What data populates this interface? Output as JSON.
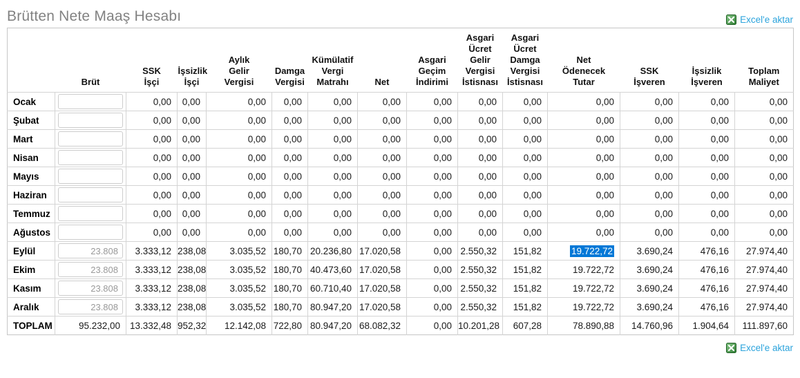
{
  "page": {
    "title": "Brütten Nete Maaş Hesabı"
  },
  "export_link": {
    "label": "Excel'e aktar"
  },
  "colors": {
    "title": "#828282",
    "link": "#2ba3dc",
    "selection_bg": "#0078d7",
    "selection_text": "#ffffff",
    "table_border": "#c6c6c6",
    "cell_border": "#d4d4d4",
    "excel_icon_green": "#2e7d32"
  },
  "table": {
    "corner_label": "",
    "columns": [
      {
        "label": "Brüt",
        "lines": [
          "Brüt"
        ]
      },
      {
        "label": "SSK İşçi",
        "lines": [
          "SSK",
          "İşçi"
        ]
      },
      {
        "label": "İşsizlik İşçi",
        "lines": [
          "İşsizlik",
          "İşçi"
        ]
      },
      {
        "label": "Aylık Gelir Vergisi",
        "lines": [
          "Aylık",
          "Gelir",
          "Vergisi"
        ]
      },
      {
        "label": "Damga Vergisi",
        "lines": [
          "Damga",
          "Vergisi"
        ]
      },
      {
        "label": "Kümülatif Vergi Matrahı",
        "lines": [
          "Kümülatif",
          "Vergi",
          "Matrahı"
        ]
      },
      {
        "label": "Net",
        "lines": [
          "Net"
        ]
      },
      {
        "label": "Asgari Geçim İndirimi",
        "lines": [
          "Asgari",
          "Geçim",
          "İndirimi"
        ]
      },
      {
        "label": "Asgari Ücret Gelir Vergisi İstisnası",
        "lines": [
          "Asgari",
          "Ücret",
          "Gelir",
          "Vergisi",
          "İstisnası"
        ]
      },
      {
        "label": "Asgari Ücret Damga Vergisi İstisnası",
        "lines": [
          "Asgari",
          "Ücret",
          "Damga",
          "Vergisi",
          "İstisnası"
        ]
      },
      {
        "label": "Net Ödenecek Tutar",
        "lines": [
          "Net",
          "Ödenecek",
          "Tutar"
        ]
      },
      {
        "label": "SSK İşveren",
        "lines": [
          "SSK",
          "İşveren"
        ]
      },
      {
        "label": "İşsizlik İşveren",
        "lines": [
          "İşsizlik",
          "İşveren"
        ]
      },
      {
        "label": "Toplam Maliyet",
        "lines": [
          "Toplam",
          "Maliyet"
        ]
      }
    ],
    "rows": [
      {
        "month": "Ocak",
        "brut_input": "",
        "values": [
          "0,00",
          "0,00",
          "0,00",
          "0,00",
          "0,00",
          "0,00",
          "0,00",
          "0,00",
          "0,00",
          "0,00",
          "0,00",
          "0,00",
          "0,00"
        ]
      },
      {
        "month": "Şubat",
        "brut_input": "",
        "values": [
          "0,00",
          "0,00",
          "0,00",
          "0,00",
          "0,00",
          "0,00",
          "0,00",
          "0,00",
          "0,00",
          "0,00",
          "0,00",
          "0,00",
          "0,00"
        ]
      },
      {
        "month": "Mart",
        "brut_input": "",
        "values": [
          "0,00",
          "0,00",
          "0,00",
          "0,00",
          "0,00",
          "0,00",
          "0,00",
          "0,00",
          "0,00",
          "0,00",
          "0,00",
          "0,00",
          "0,00"
        ]
      },
      {
        "month": "Nisan",
        "brut_input": "",
        "values": [
          "0,00",
          "0,00",
          "0,00",
          "0,00",
          "0,00",
          "0,00",
          "0,00",
          "0,00",
          "0,00",
          "0,00",
          "0,00",
          "0,00",
          "0,00"
        ]
      },
      {
        "month": "Mayıs",
        "brut_input": "",
        "values": [
          "0,00",
          "0,00",
          "0,00",
          "0,00",
          "0,00",
          "0,00",
          "0,00",
          "0,00",
          "0,00",
          "0,00",
          "0,00",
          "0,00",
          "0,00"
        ]
      },
      {
        "month": "Haziran",
        "brut_input": "",
        "values": [
          "0,00",
          "0,00",
          "0,00",
          "0,00",
          "0,00",
          "0,00",
          "0,00",
          "0,00",
          "0,00",
          "0,00",
          "0,00",
          "0,00",
          "0,00"
        ]
      },
      {
        "month": "Temmuz",
        "brut_input": "",
        "values": [
          "0,00",
          "0,00",
          "0,00",
          "0,00",
          "0,00",
          "0,00",
          "0,00",
          "0,00",
          "0,00",
          "0,00",
          "0,00",
          "0,00",
          "0,00"
        ]
      },
      {
        "month": "Ağustos",
        "brut_input": "",
        "values": [
          "0,00",
          "0,00",
          "0,00",
          "0,00",
          "0,00",
          "0,00",
          "0,00",
          "0,00",
          "0,00",
          "0,00",
          "0,00",
          "0,00",
          "0,00"
        ]
      },
      {
        "month": "Eylül",
        "brut_input": "23.808",
        "values": [
          "3.333,12",
          "238,08",
          "3.035,52",
          "180,70",
          "20.236,80",
          "17.020,58",
          "0,00",
          "2.550,32",
          "151,82",
          "19.722,72",
          "3.690,24",
          "476,16",
          "27.974,40"
        ],
        "highlight_col": 9
      },
      {
        "month": "Ekim",
        "brut_input": "23.808",
        "values": [
          "3.333,12",
          "238,08",
          "3.035,52",
          "180,70",
          "40.473,60",
          "17.020,58",
          "0,00",
          "2.550,32",
          "151,82",
          "19.722,72",
          "3.690,24",
          "476,16",
          "27.974,40"
        ]
      },
      {
        "month": "Kasım",
        "brut_input": "23.808",
        "values": [
          "3.333,12",
          "238,08",
          "3.035,52",
          "180,70",
          "60.710,40",
          "17.020,58",
          "0,00",
          "2.550,32",
          "151,82",
          "19.722,72",
          "3.690,24",
          "476,16",
          "27.974,40"
        ]
      },
      {
        "month": "Aralık",
        "brut_input": "23.808",
        "values": [
          "3.333,12",
          "238,08",
          "3.035,52",
          "180,70",
          "80.947,20",
          "17.020,58",
          "0,00",
          "2.550,32",
          "151,82",
          "19.722,72",
          "3.690,24",
          "476,16",
          "27.974,40"
        ]
      }
    ],
    "total_row": {
      "label": "TOPLAM",
      "brut": "95.232,00",
      "values": [
        "13.332,48",
        "952,32",
        "12.142,08",
        "722,80",
        "80.947,20",
        "68.082,32",
        "0,00",
        "10.201,28",
        "607,28",
        "78.890,88",
        "14.760,96",
        "1.904,64",
        "111.897,60"
      ]
    }
  }
}
